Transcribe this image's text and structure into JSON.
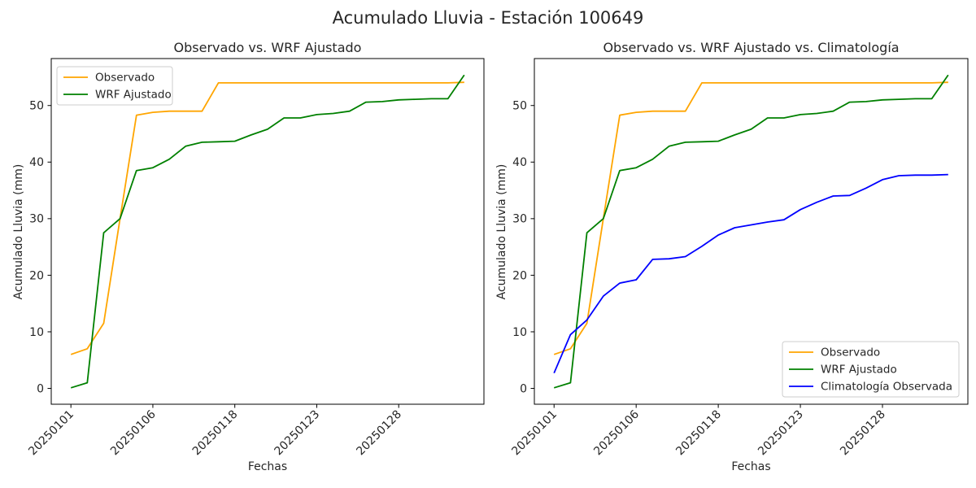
{
  "figure": {
    "suptitle": "Acumulado Lluvia - Estación 100649"
  },
  "chart_data": [
    {
      "type": "line",
      "title": "Observado vs. WRF Ajustado",
      "xlabel": "Fechas",
      "ylabel": "Acumulado Lluvia (mm)",
      "grid": false,
      "n_points": 25,
      "x_axis_kind": "categorical-dates",
      "x_tick_labels": [
        {
          "index": 0,
          "label": "20250101"
        },
        {
          "index": 5,
          "label": "20250106"
        },
        {
          "index": 10,
          "label": "20250118"
        },
        {
          "index": 15,
          "label": "20250123"
        },
        {
          "index": 20,
          "label": "20250128"
        }
      ],
      "yticks": [
        0,
        10,
        20,
        30,
        40,
        50
      ],
      "ylim": [
        -2.8,
        58.3
      ],
      "legend_loc": "upper left",
      "series": [
        {
          "name": "Observado",
          "color": "#FFA500",
          "values": [
            6.0,
            7.0,
            11.5,
            30.0,
            48.3,
            48.8,
            49.0,
            49.0,
            49.0,
            54.0,
            54.0,
            54.0,
            54.0,
            54.0,
            54.0,
            54.0,
            54.0,
            54.0,
            54.0,
            54.0,
            54.0,
            54.0,
            54.0,
            54.0,
            54.1
          ]
        },
        {
          "name": "WRF Ajustado",
          "color": "#008000",
          "values": [
            0.1,
            1.0,
            27.5,
            30.0,
            38.5,
            39.0,
            40.5,
            42.8,
            43.5,
            43.6,
            43.7,
            44.8,
            45.8,
            47.8,
            47.8,
            48.4,
            48.6,
            49.0,
            50.6,
            50.7,
            51.0,
            51.1,
            51.2,
            51.2,
            55.4
          ]
        }
      ]
    },
    {
      "type": "line",
      "title": "Observado vs. WRF Ajustado vs. Climatología",
      "xlabel": "Fechas",
      "ylabel": "Acumulado Lluvia (mm)",
      "grid": false,
      "n_points": 25,
      "x_axis_kind": "categorical-dates",
      "x_tick_labels": [
        {
          "index": 0,
          "label": "20250101"
        },
        {
          "index": 5,
          "label": "20250106"
        },
        {
          "index": 10,
          "label": "20250118"
        },
        {
          "index": 15,
          "label": "20250123"
        },
        {
          "index": 20,
          "label": "20250128"
        }
      ],
      "yticks": [
        0,
        10,
        20,
        30,
        40,
        50
      ],
      "ylim": [
        -2.8,
        58.3
      ],
      "legend_loc": "lower right",
      "series": [
        {
          "name": "Observado",
          "color": "#FFA500",
          "values": [
            6.0,
            7.0,
            11.5,
            30.0,
            48.3,
            48.8,
            49.0,
            49.0,
            49.0,
            54.0,
            54.0,
            54.0,
            54.0,
            54.0,
            54.0,
            54.0,
            54.0,
            54.0,
            54.0,
            54.0,
            54.0,
            54.0,
            54.0,
            54.0,
            54.1
          ]
        },
        {
          "name": "WRF Ajustado",
          "color": "#008000",
          "values": [
            0.1,
            1.0,
            27.5,
            30.0,
            38.5,
            39.0,
            40.5,
            42.8,
            43.5,
            43.6,
            43.7,
            44.8,
            45.8,
            47.8,
            47.8,
            48.4,
            48.6,
            49.0,
            50.6,
            50.7,
            51.0,
            51.1,
            51.2,
            51.2,
            55.4
          ]
        },
        {
          "name": "Climatología Observada",
          "color": "#0000FF",
          "values": [
            2.7,
            9.5,
            12.1,
            16.3,
            18.6,
            19.2,
            22.8,
            22.9,
            23.3,
            25.1,
            27.1,
            28.4,
            28.9,
            29.4,
            29.8,
            31.6,
            32.9,
            34.0,
            34.1,
            35.4,
            36.9,
            37.6,
            37.7,
            37.7,
            37.8
          ]
        }
      ]
    }
  ]
}
